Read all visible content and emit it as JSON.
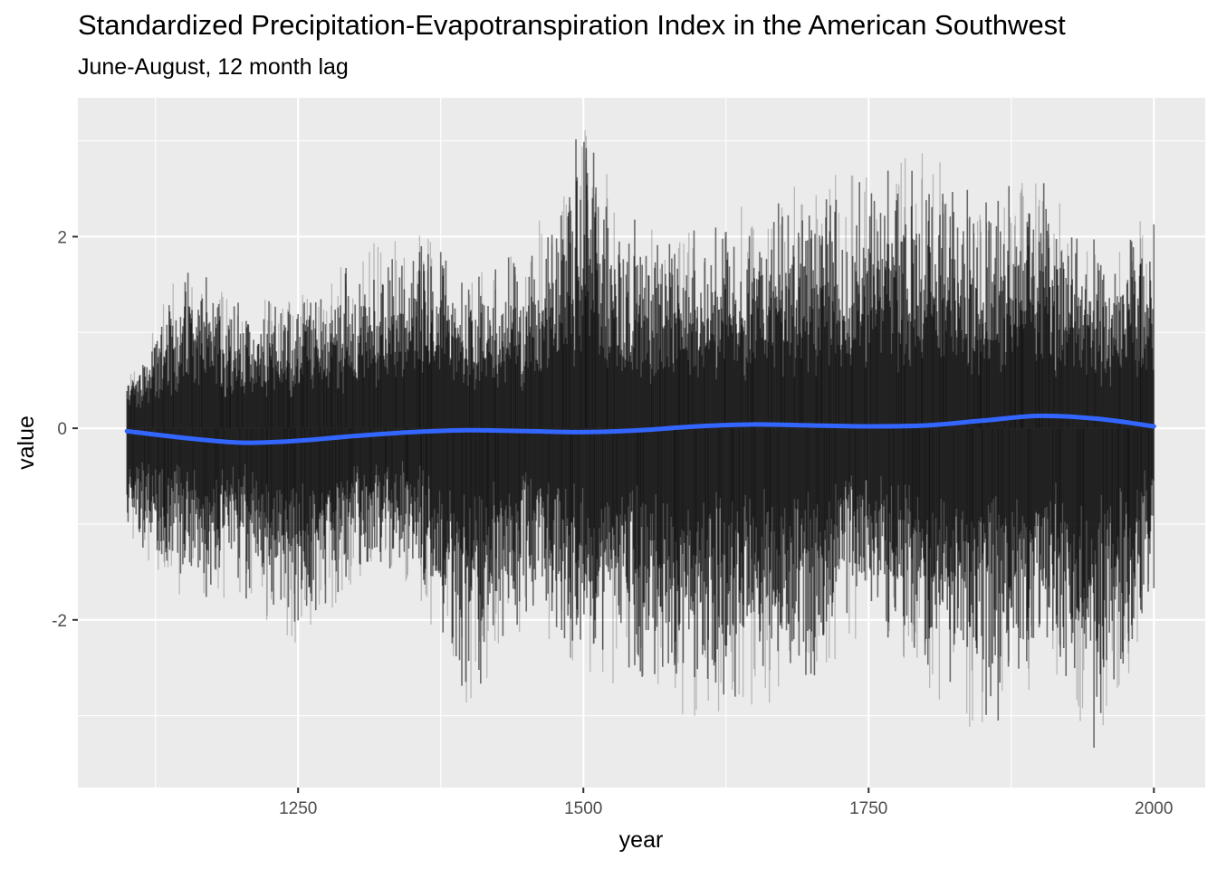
{
  "chart_data": {
    "type": "line",
    "title": "Standardized Precipitation-Evapotranspiration Index in the American Southwest",
    "subtitle": "June-August, 12 month lag",
    "xlabel": "year",
    "ylabel": "value",
    "xlim": [
      1057,
      2045
    ],
    "ylim": [
      -3.75,
      3.45
    ],
    "x_ticks": [
      1250,
      1500,
      1750,
      2000
    ],
    "x_tick_labels": [
      "1250",
      "1500",
      "1750",
      "2000"
    ],
    "y_ticks": [
      -2,
      0,
      2
    ],
    "y_tick_labels": [
      "-2",
      "0",
      "2"
    ],
    "grid": true,
    "legend": "none",
    "colors": {
      "panel": "#ebebeb",
      "grid": "#ffffff",
      "ensemble": "#000000",
      "smooth": "#3366ff"
    },
    "ensemble_envelope": {
      "name": "ensemble members (overplotted, translucent)",
      "x": [
        1100,
        1150,
        1200,
        1250,
        1300,
        1350,
        1400,
        1450,
        1500,
        1550,
        1600,
        1650,
        1700,
        1750,
        1800,
        1850,
        1900,
        1950,
        2000
      ],
      "upper": [
        0.6,
        1.8,
        1.4,
        1.4,
        1.8,
        2.2,
        1.6,
        2.0,
        3.2,
        2.2,
        2.2,
        2.4,
        2.6,
        2.8,
        2.9,
        2.6,
        2.7,
        2.0,
        2.3
      ],
      "lower": [
        -1.3,
        -1.8,
        -1.8,
        -2.3,
        -1.6,
        -1.6,
        -3.0,
        -2.1,
        -2.5,
        -2.9,
        -3.2,
        -2.9,
        -2.9,
        -2.0,
        -2.7,
        -3.4,
        -2.6,
        -3.4,
        -1.9
      ]
    },
    "series": [
      {
        "name": "smooth trend",
        "x": [
          1100,
          1150,
          1200,
          1250,
          1300,
          1350,
          1400,
          1450,
          1500,
          1550,
          1600,
          1650,
          1700,
          1750,
          1800,
          1850,
          1900,
          1950,
          2000
        ],
        "values": [
          -0.03,
          -0.1,
          -0.15,
          -0.13,
          -0.08,
          -0.04,
          -0.02,
          -0.03,
          -0.04,
          -0.02,
          0.02,
          0.04,
          0.03,
          0.02,
          0.03,
          0.08,
          0.13,
          0.1,
          0.02
        ]
      }
    ]
  }
}
